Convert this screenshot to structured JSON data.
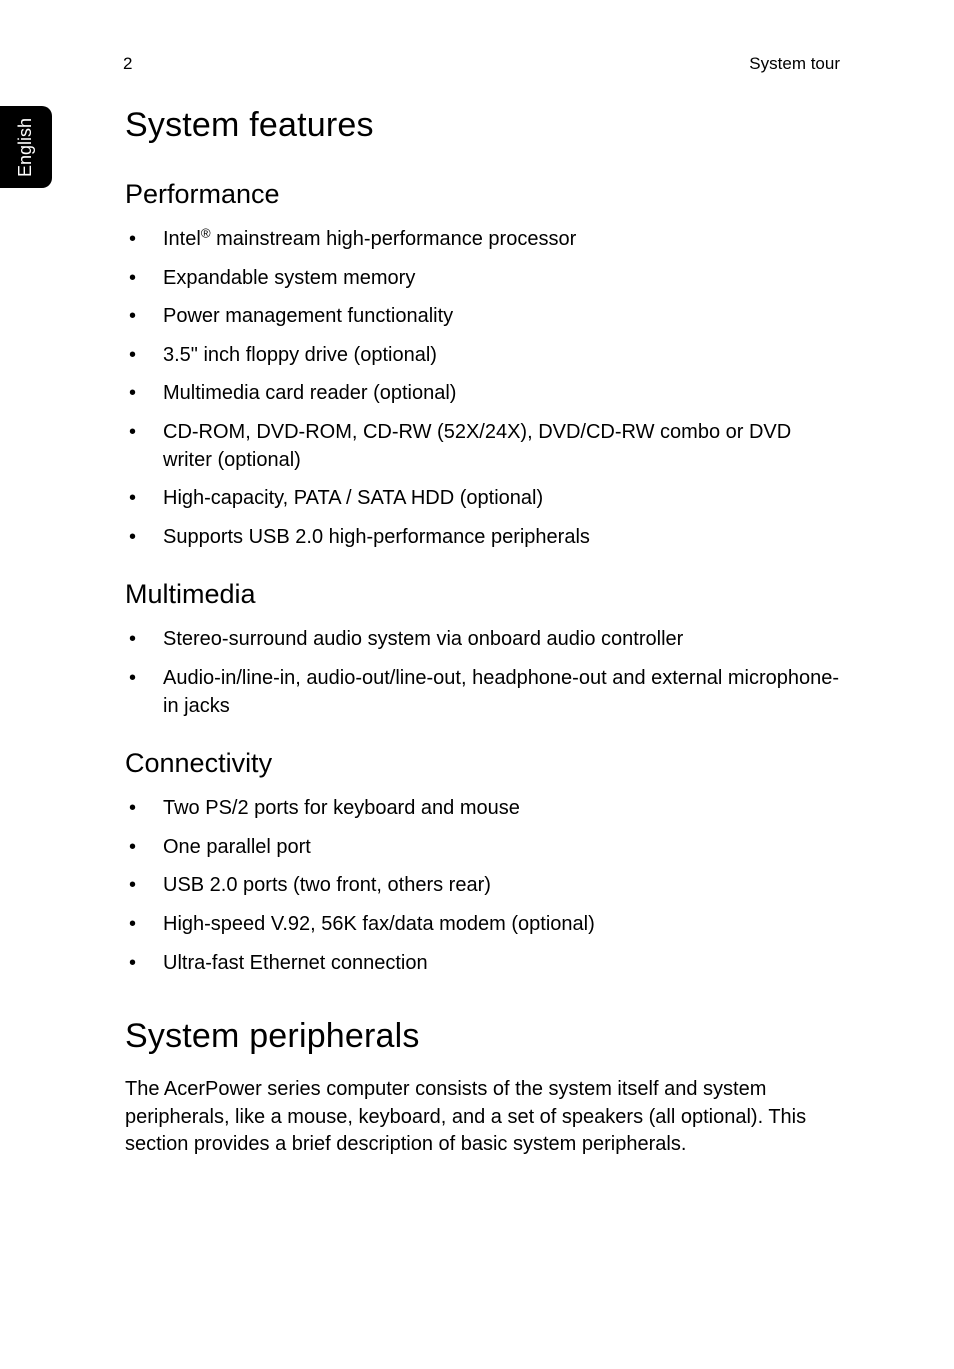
{
  "header": {
    "page_number": "2",
    "section": "System tour"
  },
  "side_tab": "English",
  "h1a": "System features",
  "sections": {
    "performance": {
      "title": "Performance",
      "items": [
        "Intel® mainstream high-performance processor",
        "Expandable system memory",
        "Power management functionality",
        "3.5\" inch floppy drive (optional)",
        "Multimedia card reader (optional)",
        "CD-ROM, DVD-ROM, CD-RW (52X/24X), DVD/CD-RW combo or DVD writer (optional)",
        "High-capacity, PATA / SATA HDD (optional)",
        "Supports USB 2.0 high-performance peripherals"
      ]
    },
    "multimedia": {
      "title": "Multimedia",
      "items": [
        "Stereo-surround audio system via onboard audio controller",
        "Audio-in/line-in, audio-out/line-out, headphone-out and external microphone-in jacks"
      ]
    },
    "connectivity": {
      "title": "Connectivity",
      "items": [
        "Two PS/2 ports for keyboard and mouse",
        "One parallel port",
        "USB 2.0 ports (two front, others rear)",
        "High-speed V.92, 56K fax/data modem (optional)",
        "Ultra-fast Ethernet connection"
      ]
    }
  },
  "h1b": "System peripherals",
  "paragraph": "The AcerPower series computer consists of the system itself and system peripherals, like a mouse, keyboard, and a set of speakers (all optional). This section provides a brief description of basic system peripherals."
}
